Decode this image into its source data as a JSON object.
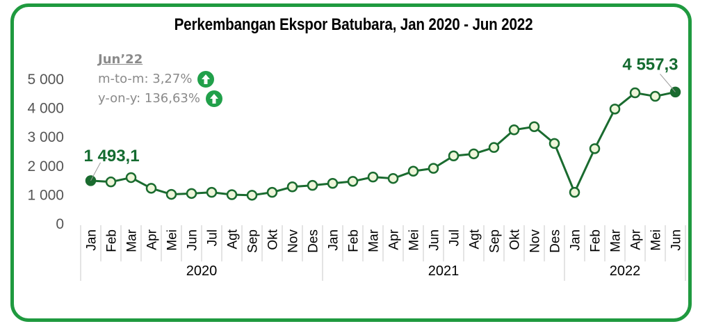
{
  "title": "Perkembangan Ekspor Batubara, Jan 2020 - Jun 2022",
  "note": {
    "heading": "Jun’22",
    "mtm": "m-to-m: 3,27%",
    "yoy": "y-on-y: 136,63%",
    "icon": "arrow-up-circle-icon"
  },
  "colors": {
    "line": "#1a6b2f",
    "marker_fill": "#eef6d9",
    "frame": "#1f9a3f",
    "up_icon": "#21a04a"
  },
  "chart_data": {
    "type": "line",
    "title": "Perkembangan Ekspor Batubara, Jan 2020 - Jun 2022",
    "xlabel": "",
    "ylabel": "",
    "ylim": [
      0,
      5000
    ],
    "yticks": [
      "0",
      "1 000",
      "2 000",
      "3 000",
      "4 000",
      "5 000"
    ],
    "grid": false,
    "years": [
      {
        "label": "2020",
        "count": 12
      },
      {
        "label": "2021",
        "count": 12
      },
      {
        "label": "2022",
        "count": 6
      }
    ],
    "categories": [
      "Jan",
      "Feb",
      "Mar",
      "Apr",
      "Mei",
      "Jun",
      "Jul",
      "Agt",
      "Sep",
      "Okt",
      "Nov",
      "Des",
      "Jan",
      "Feb",
      "Mar",
      "Apr",
      "Mei",
      "Jun",
      "Jul",
      "Agt",
      "Sep",
      "Okt",
      "Nov",
      "Des",
      "Jan",
      "Feb",
      "Mar",
      "Apr",
      "Mei",
      "Jun"
    ],
    "series": [
      {
        "values": [
          1493.1,
          1450,
          1600,
          1230,
          1020,
          1050,
          1090,
          1010,
          990,
          1090,
          1280,
          1330,
          1400,
          1470,
          1620,
          1570,
          1820,
          1920,
          2350,
          2420,
          2640,
          3250,
          3360,
          2780,
          1090,
          2600,
          3970,
          4530,
          4410,
          4557.3
        ]
      }
    ],
    "annotations": [
      {
        "label": "1 493,1",
        "index": 0
      },
      {
        "label": "4 557,3",
        "index": 29
      }
    ]
  }
}
